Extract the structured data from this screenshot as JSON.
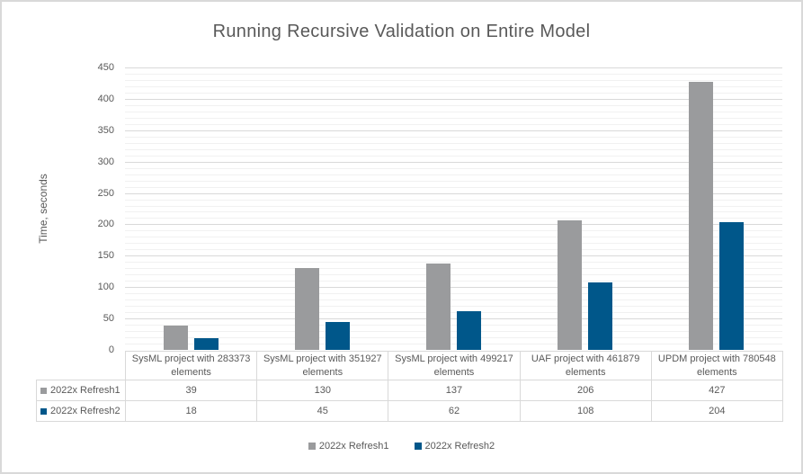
{
  "chart_data": {
    "type": "bar",
    "title": "Running Recursive Validation on Entire Model",
    "xlabel": "",
    "ylabel": "Time, seconds",
    "ylim": [
      0,
      450
    ],
    "ytick_step": 50,
    "minor_grid_step": 10,
    "grid": true,
    "legend_position": "bottom",
    "data_table_shown": true,
    "categories": [
      "SysML project with 283373 elements",
      "SysML project with 351927 elements",
      "SysML project with 499217 elements",
      "UAF project with 461879 elements",
      "UPDM project with 780548 elements"
    ],
    "series": [
      {
        "name": "2022x Refresh1",
        "color": "#9a9b9d",
        "values": [
          39,
          130,
          137,
          206,
          427
        ]
      },
      {
        "name": "2022x Refresh2",
        "color": "#00578a",
        "values": [
          18,
          45,
          62,
          108,
          204
        ]
      }
    ]
  },
  "colors": {
    "text": "#595959",
    "grid_major": "#d9d9d9",
    "grid_minor": "#f1f1f1",
    "frame_border": "#d9d9d9",
    "background": "#ffffff"
  }
}
